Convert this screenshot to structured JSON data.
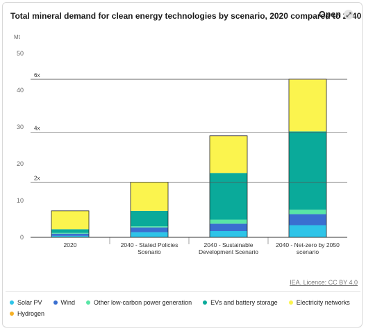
{
  "header": {
    "title": "Total mineral demand for clean energy technologies by scenario, 2020 compared to 2040",
    "open_label": "Open",
    "open_icon": "expand-icon"
  },
  "source_label": "IEA. Licence: CC BY 4.0",
  "chart_data": {
    "type": "bar",
    "stacked": true,
    "title": "Total mineral demand for clean energy technologies by scenario, 2020 compared to 2040",
    "ylabel": "Mt",
    "ylim": [
      0,
      50
    ],
    "yticks": [
      0,
      10,
      20,
      30,
      40,
      50
    ],
    "grid": false,
    "legend_position": "bottom",
    "categories": [
      [
        "2020"
      ],
      [
        "2040 - Stated Policies",
        "Scenario"
      ],
      [
        "2040 - Sustainable",
        "Development Scenario"
      ],
      [
        "2040 - Net-zero by 2050",
        "scenario"
      ]
    ],
    "reference_lines": [
      {
        "label": "2x",
        "value": 15
      },
      {
        "label": "4x",
        "value": 28.6
      },
      {
        "label": "6x",
        "value": 43
      }
    ],
    "series": [
      {
        "name": "Solar PV",
        "color": "#2ec4e8",
        "values": [
          0.4,
          1.4,
          1.7,
          3.3
        ]
      },
      {
        "name": "Wind",
        "color": "#3a6fd0",
        "values": [
          0.6,
          1.3,
          2.0,
          3.0
        ]
      },
      {
        "name": "Other low-carbon power generation",
        "color": "#58e6a6",
        "values": [
          0.2,
          0.3,
          1.1,
          1.2
        ]
      },
      {
        "name": "EVs and battery storage",
        "color": "#0aaa9a",
        "values": [
          1.0,
          4.2,
          12.7,
          21.3
        ]
      },
      {
        "name": "Electricity networks",
        "color": "#fbf44e",
        "values": [
          5.0,
          7.8,
          10.0,
          14.1
        ]
      },
      {
        "name": "Hydrogen",
        "color": "#f5b025",
        "values": [
          0,
          0,
          0.1,
          0.1
        ]
      }
    ]
  }
}
